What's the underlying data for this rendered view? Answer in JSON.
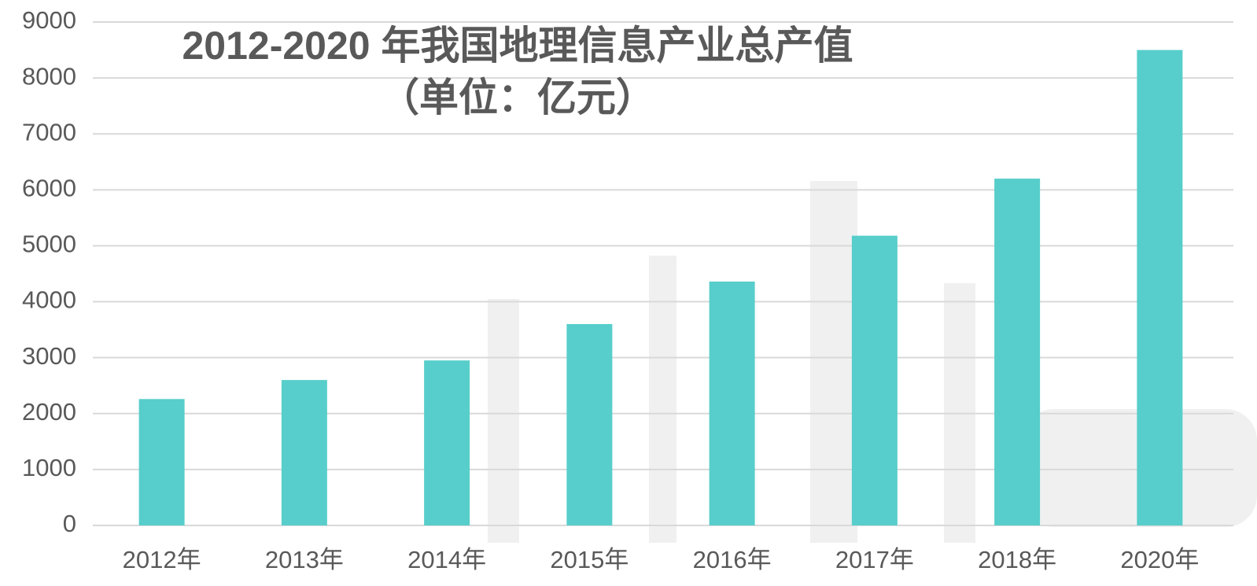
{
  "chart_data": {
    "type": "bar",
    "title": "2012-2020 年我国地理信息产业总产值",
    "subtitle": "（单位：亿元）",
    "categories": [
      "2012年",
      "2013年",
      "2014年",
      "2015年",
      "2016年",
      "2017年",
      "2018年",
      "2020年"
    ],
    "values": [
      2260,
      2600,
      2950,
      3600,
      4360,
      5180,
      6200,
      8500
    ],
    "color": "#57cecb",
    "ylim": [
      0,
      9000
    ],
    "yticks": [
      0,
      1000,
      2000,
      3000,
      4000,
      5000,
      6000,
      7000,
      8000,
      9000
    ],
    "grid": true
  }
}
